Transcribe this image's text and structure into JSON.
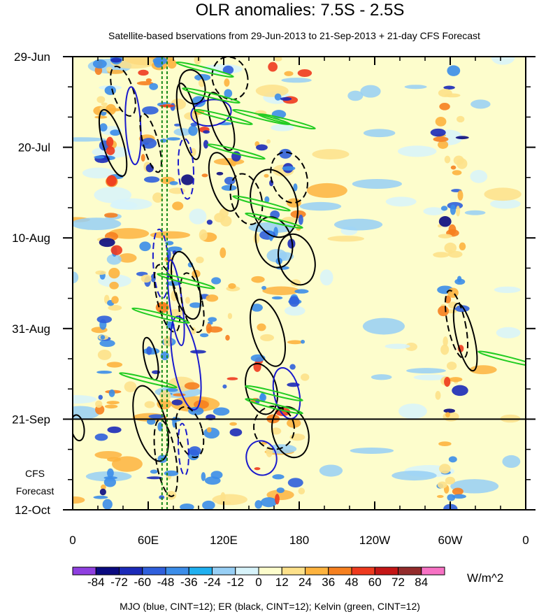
{
  "chart_data": {
    "type": "heatmap",
    "title": "OLR anomalies: 7.5S - 2.5S",
    "subtitle": "Satellite-based bservations from 29-Jun-2013 to 21-Sep-2013 + 21-day CFS Forecast",
    "x_ticks": [
      {
        "lon": 0,
        "label": "0"
      },
      {
        "lon": 60,
        "label": "60E"
      },
      {
        "lon": 120,
        "label": "120E"
      },
      {
        "lon": 180,
        "label": "180"
      },
      {
        "lon": 240,
        "label": "120W"
      },
      {
        "lon": 300,
        "label": "60W"
      },
      {
        "lon": 360,
        "label": "0"
      }
    ],
    "x_range": [
      0,
      360
    ],
    "y_ticks": [
      {
        "day": 0,
        "label": "29-Jun"
      },
      {
        "day": 21,
        "label": "20-Jul"
      },
      {
        "day": 42,
        "label": "10-Aug"
      },
      {
        "day": 63,
        "label": "31-Aug"
      },
      {
        "day": 84,
        "label": "21-Sep"
      },
      {
        "day": 105,
        "label": "12-Oct"
      }
    ],
    "y_range": [
      "29-Jun-2013",
      "12-Oct-2013"
    ],
    "forecast_start": {
      "day": 84,
      "label": "21-Sep"
    },
    "forecast_label": [
      "CFS",
      "Forecast"
    ],
    "colorbar": {
      "levels": [
        "-84",
        "-72",
        "-60",
        "-48",
        "-36",
        "-24",
        "-12",
        "0",
        "12",
        "24",
        "36",
        "48",
        "60",
        "72",
        "84"
      ],
      "colors": [
        "#8f3fe0",
        "#0a0a80",
        "#1b2ab8",
        "#2f5fdc",
        "#3b8de9",
        "#1fb0f0",
        "#97cff5",
        "#d7f3fa",
        "#fdfdcc",
        "#fde18a",
        "#fdb33e",
        "#f6801f",
        "#ee3a1e",
        "#c41616",
        "#932b2b",
        "#f772c4"
      ],
      "units": "W/m^2"
    },
    "caption": "MJO (blue, CINT=12); ER (black, CINT=12); Kelvin (green, CINT=12)",
    "contour_series": [
      {
        "name": "MJO",
        "color": "#1a1acc"
      },
      {
        "name": "ER",
        "color": "#000000"
      },
      {
        "name": "Kelvin",
        "color": "#22cc22"
      }
    ]
  }
}
